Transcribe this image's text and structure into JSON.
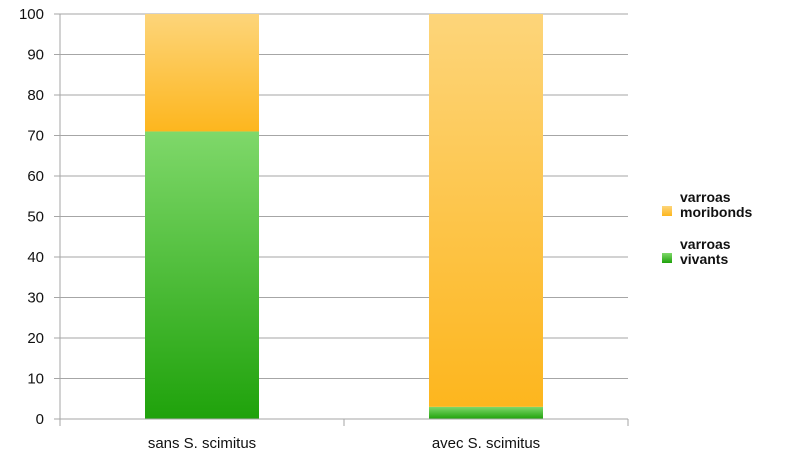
{
  "chart_data": {
    "type": "bar",
    "stacked": true,
    "categories": [
      "sans S. scimitus",
      "avec S. scimitus"
    ],
    "series": [
      {
        "name": "varroas vivants",
        "values": [
          71,
          3
        ],
        "color": "#3fbf3f"
      },
      {
        "name": "varroas moribonds",
        "values": [
          29,
          97
        ],
        "color": "#fdc34a"
      }
    ],
    "ylim": [
      0,
      100
    ],
    "yticks": [
      0,
      10,
      20,
      30,
      40,
      50,
      60,
      70,
      80,
      90,
      100
    ],
    "grid": true,
    "legend": "right",
    "legend_labels": [
      {
        "series": "varroas moribonds",
        "lines": [
          "varroas",
          "moribonds"
        ]
      },
      {
        "series": "varroas vivants",
        "lines": [
          "varroas",
          "vivants"
        ]
      }
    ]
  }
}
